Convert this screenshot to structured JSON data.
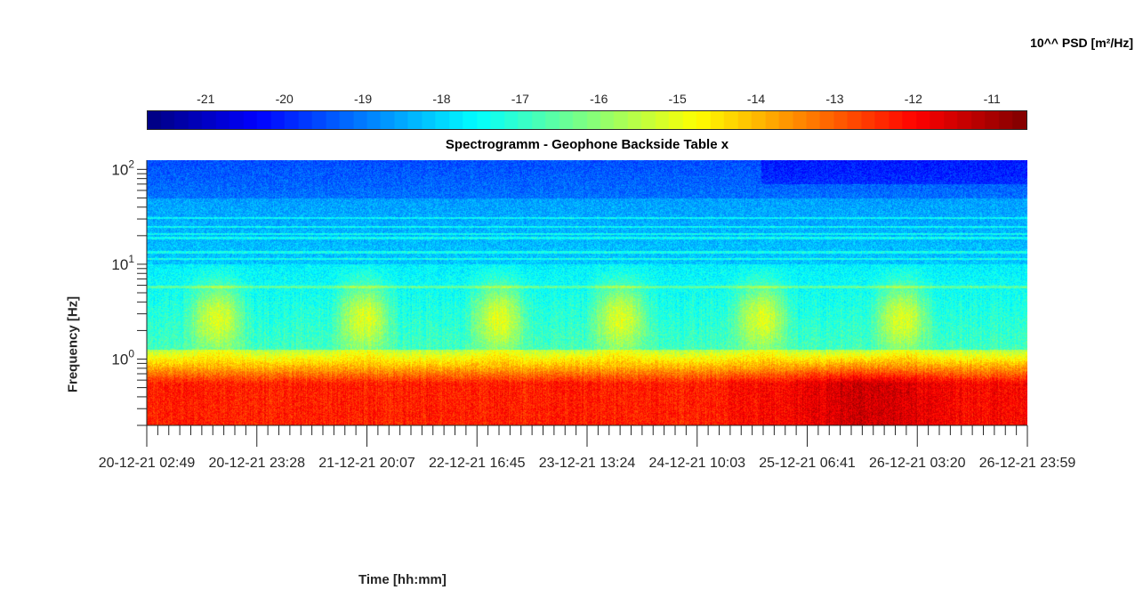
{
  "chart_data": {
    "type": "heatmap",
    "title": "Spectrogramm - Geophone Backside Table x",
    "xlabel": "Time [hh:mm]",
    "ylabel": "Frequency [Hz]",
    "colorbar": {
      "label": "10^^ PSD [m²/Hz]",
      "ticks": [
        -21,
        -20,
        -19,
        -18,
        -17,
        -16,
        -15,
        -14,
        -13,
        -12,
        -11
      ],
      "range": [
        -21.75,
        -10.55
      ],
      "colormap": "jet"
    },
    "y_axis": {
      "scale": "log",
      "range": [
        0.2,
        125
      ],
      "major_ticks": [
        {
          "value": 1,
          "label_base": "10",
          "label_exp": "0"
        },
        {
          "value": 10,
          "label_base": "10",
          "label_exp": "1"
        },
        {
          "value": 100,
          "label_base": "10",
          "label_exp": "2"
        }
      ]
    },
    "x_axis": {
      "start": "20-12-21 02:49",
      "end": "26-12-21 23:59",
      "tick_labels": [
        "20-12-21 02:49",
        "20-12-21 23:28",
        "21-12-21 20:07",
        "22-12-21 16:45",
        "23-12-21 13:24",
        "24-12-21 10:03",
        "25-12-21 06:41",
        "26-12-21 03:20",
        "26-12-21 23:59"
      ],
      "minor_ticks_per_interval": 10
    },
    "features": {
      "day_bursts_at_days": [
        0.55,
        1.7,
        2.75,
        3.7,
        4.8,
        5.9
      ],
      "low_frequency_band_hz": [
        0.2,
        0.7
      ],
      "line_frequencies_hz": [
        11.5,
        13.5,
        19,
        21,
        25,
        31,
        5.8
      ]
    }
  }
}
